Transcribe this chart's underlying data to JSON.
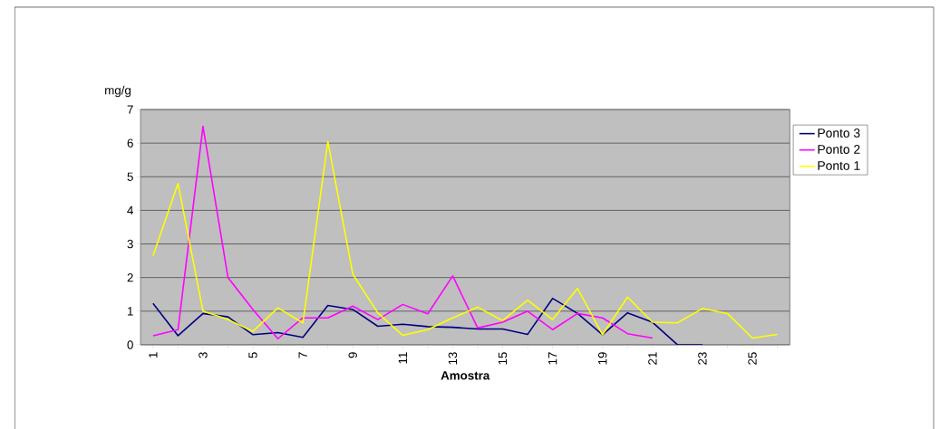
{
  "chart_data": {
    "type": "line",
    "xlabel": "Amostra",
    "ylabel": "mg/g",
    "categories": [
      "1",
      null,
      "3",
      null,
      "5",
      null,
      "7",
      null,
      "9",
      null,
      "11",
      null,
      "13",
      null,
      "15",
      null,
      "17",
      null,
      "19",
      null,
      "21",
      null,
      "23",
      null,
      "25",
      null
    ],
    "series": [
      {
        "name": "Ponto 3",
        "color": "#000080",
        "values": [
          1.23,
          0.27,
          0.93,
          0.83,
          0.3,
          0.36,
          0.22,
          1.17,
          1.05,
          0.55,
          0.61,
          0.54,
          0.52,
          0.47,
          0.47,
          0.31,
          1.38,
          0.93,
          0.3,
          0.95,
          0.67,
          0,
          0,
          null,
          null,
          null
        ]
      },
      {
        "name": "Ponto 2",
        "color": "#ff00ff",
        "values": [
          0.27,
          0.45,
          6.5,
          2.0,
          1.05,
          0.18,
          0.8,
          0.8,
          1.15,
          0.75,
          1.2,
          0.92,
          2.05,
          0.5,
          0.67,
          1.0,
          0.45,
          0.93,
          0.8,
          0.33,
          0.2,
          null,
          null,
          null,
          null,
          null
        ]
      },
      {
        "name": "Ponto 1",
        "color": "#ffff00",
        "values": [
          2.65,
          4.8,
          1.0,
          0.75,
          0.4,
          1.1,
          0.65,
          6.05,
          2.1,
          0.95,
          0.28,
          0.45,
          0.8,
          1.12,
          0.72,
          1.33,
          0.75,
          1.68,
          0.3,
          1.42,
          0.67,
          0.65,
          1.08,
          0.93,
          0.2,
          0.31
        ]
      }
    ],
    "ylim": [
      0,
      7
    ],
    "yticks": [
      0,
      1,
      2,
      3,
      4,
      5,
      6,
      7
    ],
    "grid": "y",
    "legend": "right",
    "marker": "none",
    "line_style": "solid"
  }
}
